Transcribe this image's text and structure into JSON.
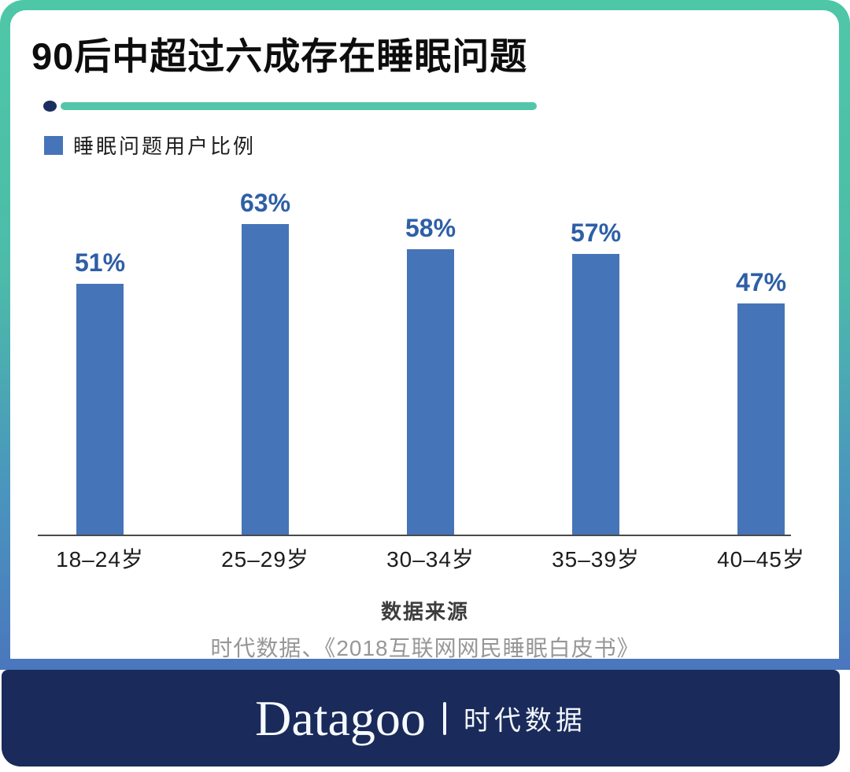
{
  "header": {
    "title": "90后中超过六成存在睡眠问题"
  },
  "legend": {
    "label": "睡眠问题用户比例",
    "swatch_color": "#4674B8"
  },
  "chart_data": {
    "type": "bar",
    "title": "90后中超过六成存在睡眠问题",
    "series_name": "睡眠问题用户比例",
    "categories": [
      "18–24岁",
      "25–29岁",
      "30–34岁",
      "35–39岁",
      "40–45岁"
    ],
    "values": [
      51,
      63,
      58,
      57,
      47
    ],
    "value_labels": [
      "51%",
      "63%",
      "58%",
      "57%",
      "47%"
    ],
    "unit": "%",
    "ylim": [
      0,
      70
    ],
    "grid": false,
    "legend_position": "top-left",
    "bar_color": "#4674B8",
    "value_label_color": "#2E5FA6",
    "accent_teal": "#53C6A9",
    "accent_navy": "#1A2A5A"
  },
  "source": {
    "heading": "数据来源",
    "text": "时代数据、《2018互联网网民睡眠白皮书》"
  },
  "footer": {
    "brand_en": "Datagoo",
    "brand_cn": "时代数据"
  }
}
